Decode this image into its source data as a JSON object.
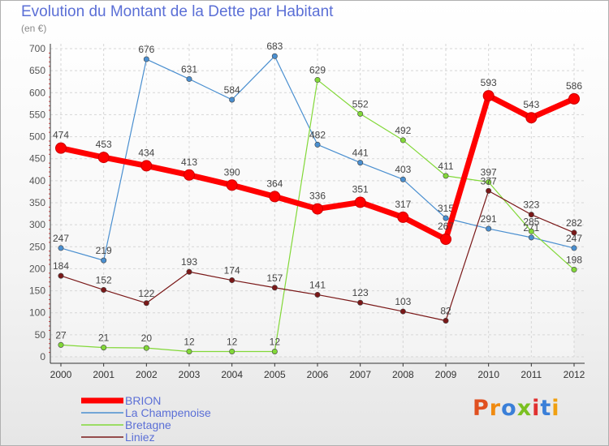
{
  "title": "Evolution du Montant de la Dette par Habitant",
  "unit": "(en €)",
  "logo": "Proxiti",
  "chart_data": {
    "type": "line",
    "x": [
      "2000",
      "2001",
      "2002",
      "2003",
      "2004",
      "2005",
      "2006",
      "2007",
      "2008",
      "2009",
      "2010",
      "2011",
      "2012"
    ],
    "ylim": [
      0,
      700
    ],
    "yticks": [
      0,
      50,
      100,
      150,
      200,
      250,
      300,
      350,
      400,
      450,
      500,
      550,
      600,
      650,
      700
    ],
    "grid": true,
    "legend_position": "bottom-left",
    "series": [
      {
        "name": "BRION",
        "color": "#ff0000",
        "values": [
          474,
          453,
          434,
          413,
          390,
          364,
          336,
          351,
          317,
          267,
          593,
          543,
          586
        ],
        "labels": [
          "474",
          "453",
          "434",
          "413",
          "390",
          "364",
          "336",
          "351",
          "317",
          "267",
          "593",
          "543",
          "586"
        ]
      },
      {
        "name": "La Champenoise",
        "color": "#4a8fd0",
        "values": [
          247,
          219,
          676,
          631,
          584,
          683,
          482,
          441,
          403,
          315,
          291,
          271,
          247
        ],
        "labels": [
          "247",
          "219",
          "676",
          "631",
          "584",
          "683",
          "482",
          "441",
          "403",
          "315",
          "291",
          "271",
          "247"
        ]
      },
      {
        "name": "Bretagne",
        "color": "#82d838",
        "values": [
          27,
          21,
          20,
          12,
          12,
          12,
          629,
          552,
          492,
          411,
          397,
          285,
          198
        ],
        "labels": [
          "27",
          "21",
          "20",
          "12",
          "12",
          "12",
          "629",
          "552",
          "492",
          "411",
          "397",
          "285",
          "198"
        ]
      },
      {
        "name": "Liniez",
        "color": "#7a1818",
        "values": [
          184,
          152,
          122,
          193,
          174,
          157,
          141,
          123,
          103,
          82,
          377,
          323,
          282
        ],
        "labels": [
          "184",
          "152",
          "122",
          "193",
          "174",
          "157",
          "141",
          "123",
          "103",
          "82",
          "377",
          "323",
          "282"
        ]
      }
    ]
  }
}
